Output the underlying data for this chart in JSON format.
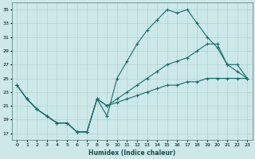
{
  "xlabel": "Humidex (Indice chaleur)",
  "bg_color": "#cce8e8",
  "line_color": "#1a6b6b",
  "grid_color": "#aacaca",
  "xlim": [
    -0.5,
    23.5
  ],
  "ylim": [
    16,
    36
  ],
  "xticks": [
    0,
    1,
    2,
    3,
    4,
    5,
    6,
    7,
    8,
    9,
    10,
    11,
    12,
    13,
    14,
    15,
    16,
    17,
    18,
    19,
    20,
    21,
    22,
    23
  ],
  "yticks": [
    17,
    19,
    21,
    23,
    25,
    27,
    29,
    31,
    33,
    35
  ],
  "s1x": [
    0,
    1,
    2,
    3,
    4,
    5,
    6,
    7,
    8,
    9,
    10,
    11,
    12,
    13,
    14,
    15,
    16,
    17,
    18,
    19,
    20,
    21,
    22,
    23
  ],
  "s1y": [
    24,
    22,
    20.5,
    19.5,
    18.5,
    18.5,
    17.2,
    17.2,
    22,
    19.5,
    25,
    27.5,
    30,
    32,
    33.5,
    35,
    34.5,
    35,
    33,
    31,
    29.5,
    27,
    27,
    25
  ],
  "s2x": [
    0,
    1,
    2,
    3,
    4,
    5,
    6,
    7,
    8,
    9,
    10,
    11,
    12,
    13,
    14,
    15,
    16,
    17,
    18,
    19,
    20,
    21,
    22,
    23
  ],
  "s2y": [
    24,
    22,
    20.5,
    19.5,
    18.5,
    18.5,
    17.2,
    17.2,
    22,
    21,
    22,
    23,
    24,
    25,
    26,
    27,
    27.5,
    28,
    29,
    30,
    30,
    27,
    26,
    25
  ],
  "s3x": [
    0,
    1,
    2,
    3,
    4,
    5,
    6,
    7,
    8,
    9,
    10,
    11,
    12,
    13,
    14,
    15,
    16,
    17,
    18,
    19,
    20,
    21,
    22,
    23
  ],
  "s3y": [
    24,
    22,
    20.5,
    19.5,
    18.5,
    18.5,
    17.2,
    17.2,
    22,
    21,
    21.5,
    22,
    22.5,
    23,
    23.5,
    24,
    24,
    24.5,
    24.5,
    25,
    25,
    25,
    25,
    25
  ]
}
